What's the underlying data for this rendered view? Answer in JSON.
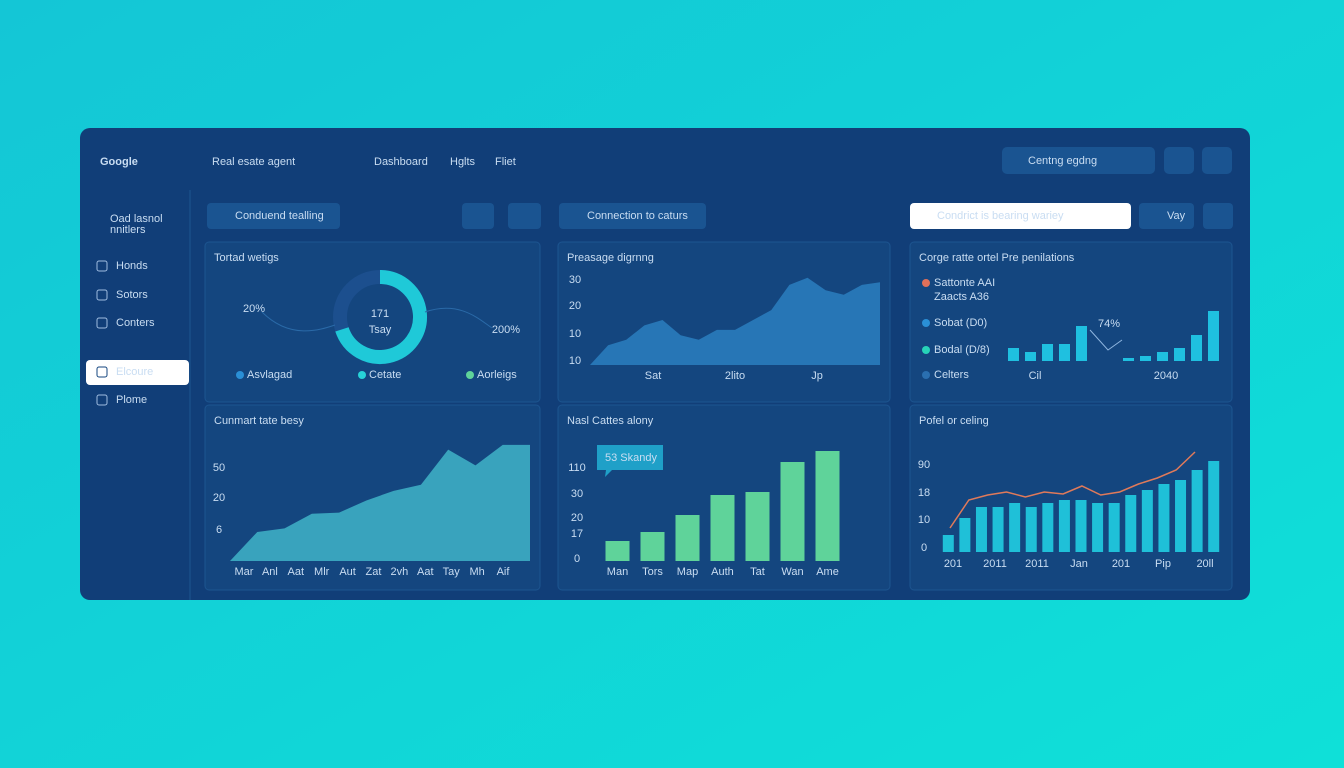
{
  "header": {
    "logo": "Google",
    "title": "Real esate agent",
    "nav": [
      "Dashboard",
      "Hglts",
      "Fliet"
    ],
    "search": "Centng egdng"
  },
  "sidebar": {
    "profile": [
      "Oad lasnol",
      "nnitlers"
    ],
    "items": [
      "Honds",
      "Sotors",
      "Conters",
      "Elcoure",
      "Plome"
    ],
    "active": 3
  },
  "toolbar": {
    "left": "Conduend tealling",
    "middle": "Connection to caturs",
    "search": "Condrict is bearing wariey",
    "button": "Vay"
  },
  "cards": [
    {
      "kind": "donut",
      "title": "Tortad wetigs",
      "center": "171",
      "sub": "Tsay",
      "arc": 70,
      "left_label": "20%",
      "right_label": "200%",
      "legend": [
        {
          "name": "Asvlagad",
          "color": "#2a8fd6"
        },
        {
          "name": "Cetate",
          "color": "#27d3d8"
        },
        {
          "name": "Aorleigs",
          "color": "#5fd39a"
        }
      ]
    },
    {
      "kind": "area",
      "title": "Preasage digrnng",
      "ytick_labels": [
        "30",
        "20",
        "10",
        "10"
      ],
      "xlabels": [
        "Sat",
        "2lito",
        "Jp"
      ],
      "ylim": [
        0,
        100
      ],
      "color": "#2a7fbf",
      "values": [
        0,
        22,
        28,
        44,
        50,
        33,
        28,
        39,
        39,
        50,
        61,
        89,
        97,
        83,
        78,
        89,
        92
      ]
    },
    {
      "kind": "groups",
      "title": "Corge ratte ortel Pre penilations",
      "legend": [
        {
          "name": "Sattonte AAI",
          "sub": "Zaacts A36",
          "color": "#e0705a"
        },
        {
          "name": "Sobat (D0)",
          "color": "#2a8fd6"
        },
        {
          "name": "Bodal (D/8)",
          "color": "#27d3b8"
        },
        {
          "name": "Celters",
          "color": "#2a6fb0"
        }
      ],
      "annotation": "74%",
      "xlabels": [
        "Cil",
        "2040"
      ],
      "ylim": [
        0,
        55
      ],
      "color": "#1fc0e0",
      "groups": [
        [
          13,
          9,
          17,
          17,
          35
        ],
        [
          3,
          5,
          9,
          13,
          26,
          50
        ]
      ]
    },
    {
      "kind": "area",
      "title": "Cunmart tate besy",
      "ytick_labels": [
        "50",
        "20",
        "6"
      ],
      "xlabels": [
        "Mar",
        "Anl",
        "Aat",
        "Mlr",
        "Aut",
        "Zat",
        "2vh",
        "Aat",
        "Tay",
        "Mh",
        "Aif"
      ],
      "ylim": [
        0,
        100
      ],
      "color": "#3fb4c8",
      "values": [
        0,
        24,
        27,
        39,
        40,
        50,
        58,
        63,
        92,
        79,
        96,
        96
      ]
    },
    {
      "kind": "bar",
      "title": "Nasl Cattes alony",
      "tooltip": "53 Skandy",
      "ytick_labels": [
        "110",
        "30",
        "20",
        "17",
        "0"
      ],
      "xlabels": [
        "Man",
        "Tors",
        "Map",
        "Auth",
        "Tat",
        "Wan",
        "Ame"
      ],
      "ylim": [
        0,
        120
      ],
      "color": "#5fd39a",
      "values": [
        20,
        29,
        46,
        66,
        69,
        99,
        110
      ]
    },
    {
      "kind": "barline",
      "title": "Pofel or celing",
      "ytick_labels": [
        "90",
        "18",
        "10",
        "0"
      ],
      "xlabels": [
        "201",
        "2011",
        "2011",
        "Jan",
        "201",
        "Pip",
        "20ll"
      ],
      "ylim": [
        0,
        110
      ],
      "color": "#1fc0d8",
      "line_color": "#e07a5a",
      "values": [
        17,
        34,
        45,
        45,
        49,
        45,
        49,
        52,
        52,
        49,
        49,
        57,
        62,
        68,
        72,
        82,
        91
      ],
      "line": [
        24,
        52,
        57,
        60,
        55,
        60,
        58,
        66,
        57,
        60,
        68,
        74,
        82,
        100
      ]
    }
  ]
}
